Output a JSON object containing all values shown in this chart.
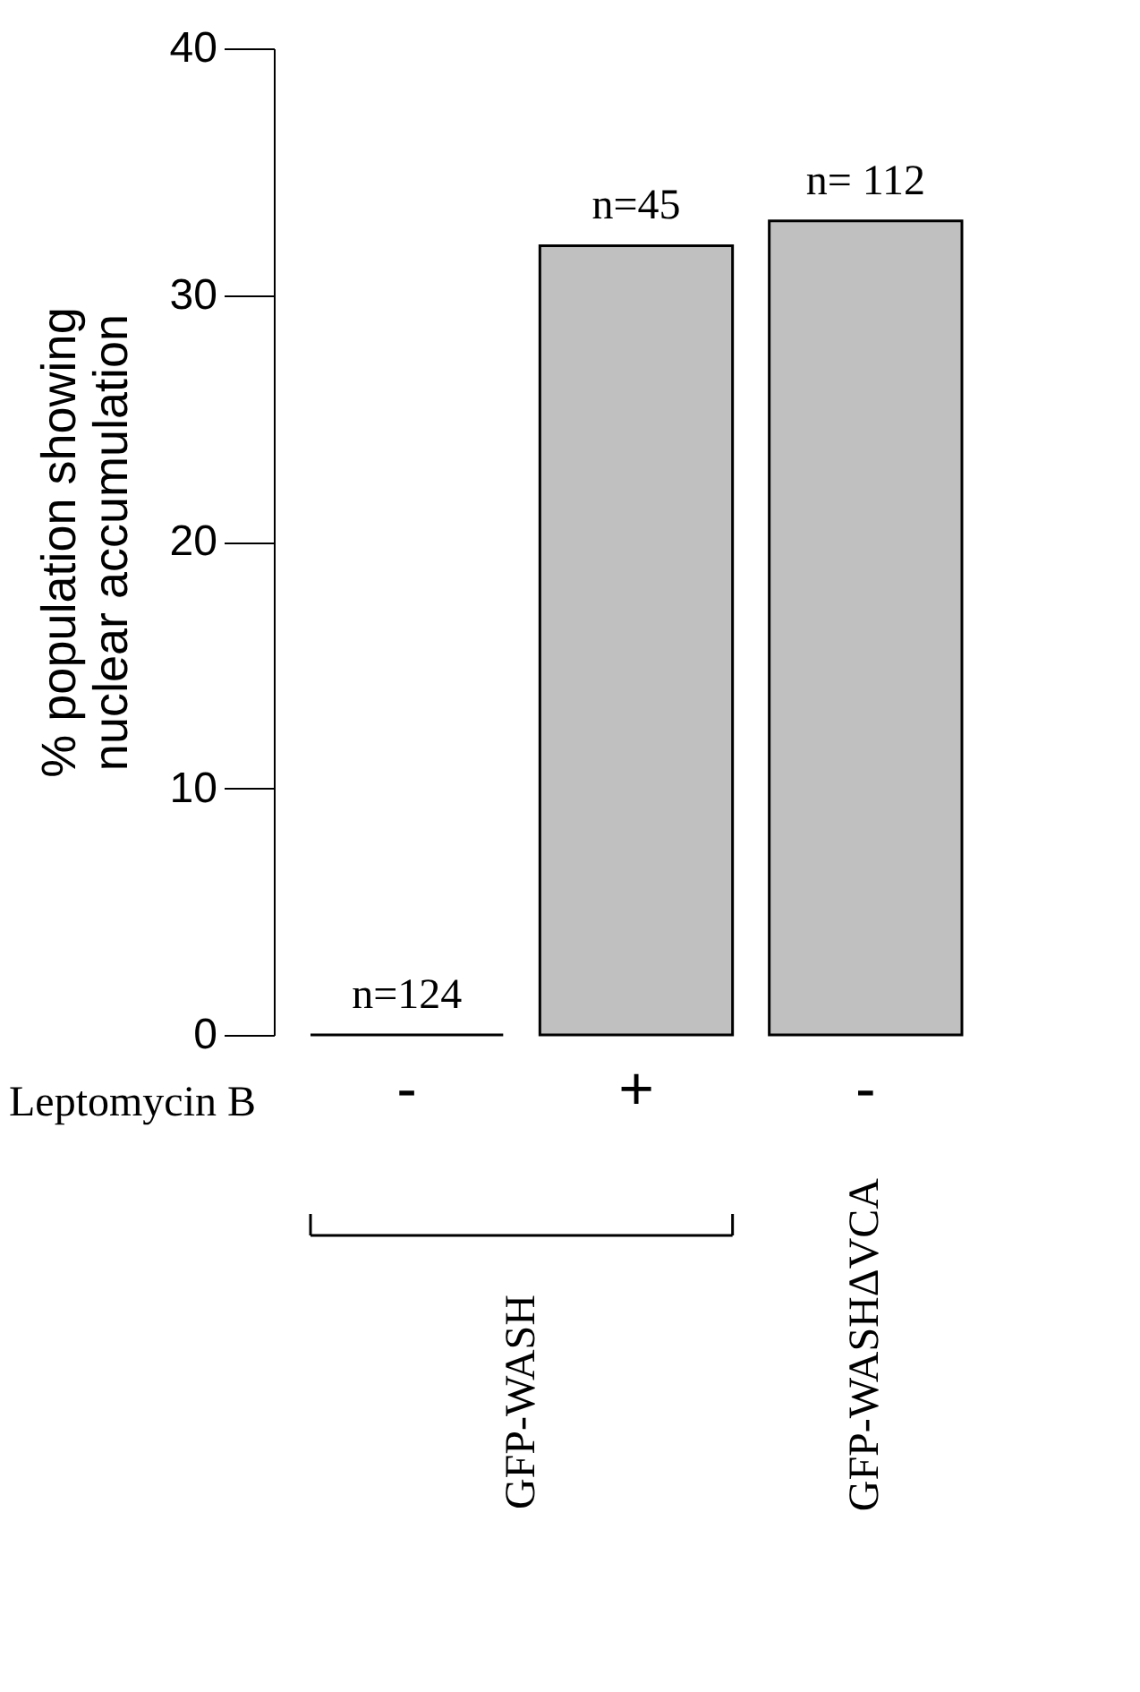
{
  "chart_data": {
    "type": "bar",
    "categories": [
      "-",
      "+",
      "-"
    ],
    "values": [
      0,
      32,
      33
    ],
    "color": "#c0c0c0",
    "ylabel": "% population showing\nnuclear accumulation",
    "xlabel": "Leptomycin B",
    "annotations": [
      "GFP-WASH",
      "GFP-WASHΔVCA",
      {
        "text": "n=124",
        "x": "-",
        "y": 0
      },
      {
        "text": "n=45",
        "x": "+",
        "y": 32
      },
      {
        "text": "n= 112",
        "y": 33
      }
    ],
    "ylim": [
      0,
      40
    ],
    "yticks": [
      0,
      10,
      20,
      30,
      40
    ],
    "grid": false
  }
}
